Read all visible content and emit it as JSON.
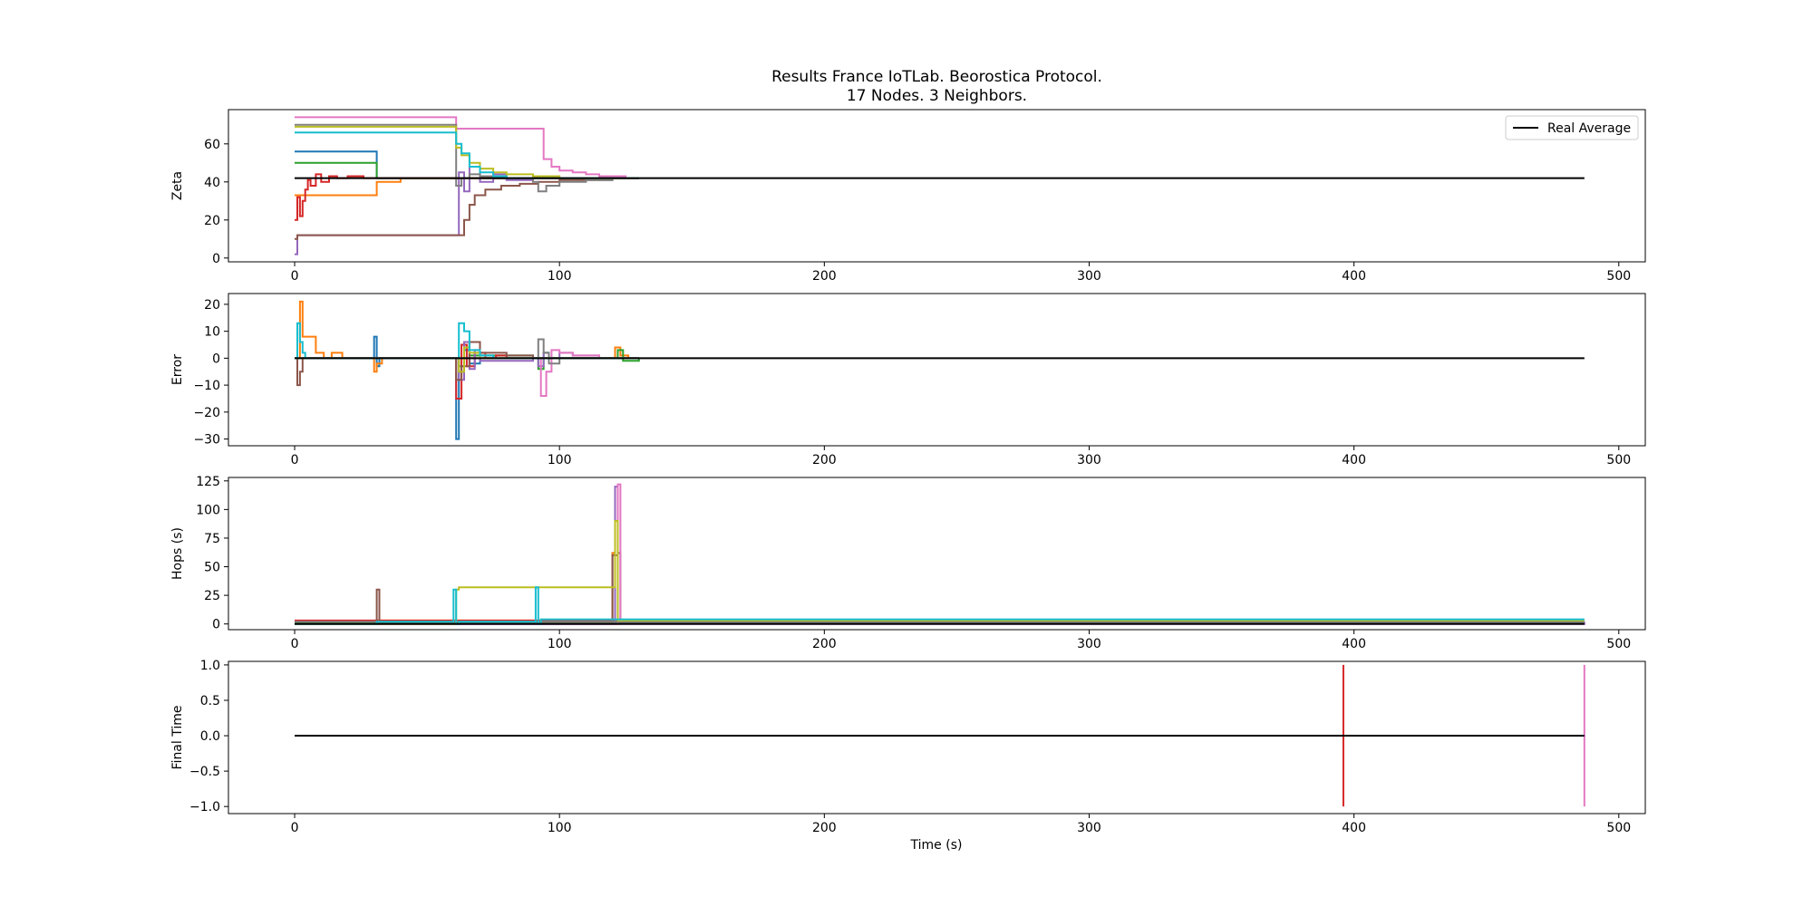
{
  "figure": {
    "title_line1": "Results France IoTLab. Beorostica Protocol.",
    "title_line2": "17 Nodes. 3 Neighbors.",
    "xlabel": "Time (s)"
  },
  "colors": {
    "real_average": "#000000",
    "tab10": [
      "#1f77b4",
      "#ff7f0e",
      "#2ca02c",
      "#d62728",
      "#9467bd",
      "#8c564b",
      "#e377c2",
      "#7f7f7f",
      "#bcbd22",
      "#17becf"
    ]
  },
  "chart_data": [
    {
      "type": "line",
      "ylabel": "Zeta",
      "xlim": [
        -25,
        510
      ],
      "ylim": [
        -2,
        78
      ],
      "xticks": [
        0,
        100,
        200,
        300,
        400,
        500
      ],
      "yticks": [
        0,
        20,
        40,
        60
      ],
      "grid": false,
      "legend": {
        "placement": "top-right",
        "entries": [
          "Real Average"
        ]
      },
      "reference": {
        "name": "Real Average",
        "x": [
          0,
          487
        ],
        "y": [
          42,
          42
        ]
      },
      "series": [
        {
          "x": [
            0,
            30,
            31,
            40,
            130
          ],
          "y": [
            56,
            56,
            42,
            42,
            42
          ]
        },
        {
          "x": [
            0,
            30,
            31,
            40,
            130
          ],
          "y": [
            33,
            33,
            40,
            42,
            42
          ]
        },
        {
          "x": [
            0,
            30,
            31,
            40,
            130
          ],
          "y": [
            50,
            50,
            42,
            42,
            42
          ]
        },
        {
          "x": [
            0,
            1,
            2,
            3,
            4,
            5,
            6,
            8,
            10,
            13,
            16,
            20,
            26,
            30,
            130
          ],
          "y": [
            20,
            32,
            22,
            30,
            36,
            41,
            38,
            44,
            40,
            43,
            42,
            43,
            42,
            42,
            42
          ]
        },
        {
          "x": [
            0,
            1,
            2,
            60,
            62,
            64,
            66,
            70,
            75,
            80,
            90,
            100,
            110,
            120,
            130
          ],
          "y": [
            2,
            12,
            12,
            12,
            45,
            35,
            48,
            40,
            44,
            41,
            42,
            42,
            42,
            42,
            42
          ]
        },
        {
          "x": [
            0,
            1,
            2,
            61,
            64,
            66,
            68,
            72,
            78,
            85,
            92,
            100,
            110,
            120,
            130
          ],
          "y": [
            10,
            12,
            12,
            12,
            20,
            28,
            33,
            36,
            38,
            39,
            40,
            41,
            41,
            42,
            42
          ]
        },
        {
          "x": [
            0,
            60,
            61,
            93,
            94,
            97,
            100,
            105,
            110,
            115,
            120,
            125,
            130
          ],
          "y": [
            74,
            74,
            68,
            68,
            52,
            48,
            46,
            45,
            44,
            43,
            43,
            42,
            42
          ]
        },
        {
          "x": [
            0,
            60,
            61,
            63,
            66,
            70,
            75,
            80,
            85,
            90,
            92,
            95,
            100,
            110,
            120,
            130
          ],
          "y": [
            70,
            70,
            38,
            42,
            44,
            43,
            42,
            42,
            42,
            40,
            35,
            38,
            40,
            41,
            42,
            42
          ]
        },
        {
          "x": [
            0,
            60,
            61,
            63,
            66,
            70,
            75,
            80,
            90,
            100,
            110,
            130
          ],
          "y": [
            69,
            69,
            58,
            54,
            50,
            47,
            45,
            44,
            43,
            42,
            42,
            42
          ]
        },
        {
          "x": [
            0,
            60,
            61,
            63,
            66,
            70,
            75,
            80,
            90,
            100,
            110,
            130
          ],
          "y": [
            66,
            66,
            60,
            55,
            48,
            45,
            43,
            42,
            42,
            42,
            42,
            42
          ]
        }
      ]
    },
    {
      "type": "line",
      "ylabel": "Error",
      "xlim": [
        -25,
        510
      ],
      "ylim": [
        -32.5,
        24
      ],
      "xticks": [
        0,
        100,
        200,
        300,
        400,
        500
      ],
      "yticks": [
        -30,
        -20,
        -10,
        0,
        10,
        20
      ],
      "grid": false,
      "reference": {
        "name": "",
        "x": [
          0,
          487
        ],
        "y": [
          0,
          0
        ]
      },
      "series": [
        {
          "x": [
            0,
            30,
            31,
            32,
            60,
            61,
            62,
            64,
            66,
            70,
            80,
            130
          ],
          "y": [
            0,
            8,
            -3,
            0,
            0,
            -30,
            -5,
            3,
            -2,
            1,
            0,
            0
          ]
        },
        {
          "x": [
            0,
            2,
            3,
            5,
            8,
            11,
            14,
            18,
            22,
            30,
            31,
            33,
            60,
            120,
            121,
            123,
            126,
            130
          ],
          "y": [
            0,
            21,
            8,
            8,
            2,
            0,
            2,
            0,
            0,
            -5,
            -2,
            0,
            0,
            0,
            4,
            1,
            0,
            0
          ]
        },
        {
          "x": [
            0,
            60,
            62,
            64,
            66,
            90,
            92,
            94,
            96,
            120,
            122,
            124,
            130
          ],
          "y": [
            0,
            0,
            -3,
            6,
            1,
            0,
            -4,
            2,
            0,
            0,
            3,
            -1,
            0
          ]
        },
        {
          "x": [
            0,
            60,
            61,
            63,
            65,
            68,
            72,
            76,
            80,
            130
          ],
          "y": [
            0,
            0,
            -15,
            5,
            -3,
            2,
            0,
            1,
            0,
            0
          ]
        },
        {
          "x": [
            0,
            60,
            62,
            64,
            66,
            68,
            70,
            90,
            92,
            94,
            96,
            100,
            105,
            110,
            115,
            120,
            125,
            130
          ],
          "y": [
            0,
            0,
            -8,
            6,
            -4,
            3,
            -1,
            0,
            -3,
            2,
            0,
            2,
            1,
            1,
            0,
            0,
            0,
            0
          ]
        },
        {
          "x": [
            0,
            1,
            2,
            3,
            60,
            61,
            63,
            66,
            70,
            80,
            90,
            130
          ],
          "y": [
            0,
            -10,
            -5,
            0,
            0,
            -8,
            -3,
            6,
            2,
            1,
            0,
            0
          ]
        },
        {
          "x": [
            0,
            90,
            93,
            95,
            97,
            100,
            105,
            110,
            115,
            120,
            125,
            130
          ],
          "y": [
            0,
            0,
            -14,
            -5,
            3,
            2,
            1,
            1,
            0,
            0,
            0,
            0
          ]
        },
        {
          "x": [
            0,
            90,
            92,
            94,
            96,
            100,
            130
          ],
          "y": [
            0,
            0,
            7,
            2,
            -2,
            0,
            0
          ]
        },
        {
          "x": [
            0,
            60,
            62,
            64,
            66,
            70,
            130
          ],
          "y": [
            0,
            0,
            -5,
            4,
            2,
            0,
            0
          ]
        },
        {
          "x": [
            0,
            1,
            2,
            3,
            4,
            5,
            60,
            62,
            64,
            66,
            70,
            75,
            80,
            130
          ],
          "y": [
            0,
            13,
            6,
            2,
            0,
            0,
            0,
            13,
            10,
            3,
            1,
            0,
            0,
            0
          ]
        }
      ]
    },
    {
      "type": "line",
      "ylabel": "Hops (s)",
      "xlim": [
        -25,
        510
      ],
      "ylim": [
        -5,
        128
      ],
      "xticks": [
        0,
        100,
        200,
        300,
        400,
        500
      ],
      "yticks": [
        0,
        25,
        50,
        75,
        100,
        125
      ],
      "grid": false,
      "reference": {
        "name": "",
        "x": [
          0,
          487
        ],
        "y": [
          0,
          0
        ]
      },
      "series": [
        {
          "x": [
            0,
            120,
            121,
            487
          ],
          "y": [
            0,
            62,
            1,
            1
          ]
        },
        {
          "x": [
            0,
            30,
            30.5,
            120,
            121,
            122,
            487
          ],
          "y": [
            0,
            0,
            3,
            62,
            0,
            2,
            2
          ]
        },
        {
          "x": [
            0,
            487
          ],
          "y": [
            1,
            1
          ]
        },
        {
          "x": [
            0,
            487
          ],
          "y": [
            3,
            3
          ]
        },
        {
          "x": [
            0,
            121,
            122,
            487
          ],
          "y": [
            0,
            120,
            0,
            2
          ]
        },
        {
          "x": [
            0,
            30,
            31,
            32,
            120,
            122,
            123,
            487
          ],
          "y": [
            0,
            0,
            30,
            2,
            60,
            62,
            3,
            3
          ]
        },
        {
          "x": [
            0,
            122,
            123,
            487
          ],
          "y": [
            0,
            122,
            2,
            2
          ]
        },
        {
          "x": [
            0,
            487
          ],
          "y": [
            2,
            2
          ]
        },
        {
          "x": [
            0,
            60,
            61,
            62,
            121,
            122,
            487
          ],
          "y": [
            0,
            0,
            30,
            32,
            90,
            3,
            3
          ]
        },
        {
          "x": [
            0,
            30,
            31,
            60,
            61,
            62,
            91,
            92,
            93,
            487
          ],
          "y": [
            0,
            0,
            2,
            30,
            0,
            2,
            32,
            0,
            4,
            4
          ]
        }
      ]
    },
    {
      "type": "line",
      "ylabel": "Final Time",
      "xlabel": "Time (s)",
      "xlim": [
        -25,
        510
      ],
      "ylim": [
        -1.1,
        1.05
      ],
      "xticks": [
        0,
        100,
        200,
        300,
        400,
        500
      ],
      "yticks": [
        -1.0,
        -0.5,
        0.0,
        0.5,
        1.0
      ],
      "grid": false,
      "reference": {
        "name": "",
        "x": [
          0,
          487
        ],
        "y": [
          0,
          0
        ]
      },
      "vlines": [
        {
          "x": 396,
          "ymin": -1,
          "ymax": 1,
          "color_index": 3
        },
        {
          "x": 487,
          "ymin": -1,
          "ymax": 1,
          "color_index": 6
        }
      ]
    }
  ]
}
